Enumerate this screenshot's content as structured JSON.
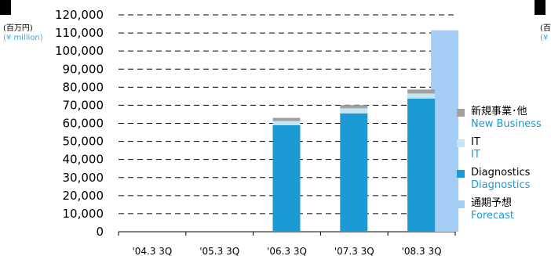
{
  "chart_data": {
    "type": "bar",
    "unit_label_ja": "(百万円)",
    "unit_label_en": "(¥ million)",
    "clipped_unit_label_ja": "(百",
    "clipped_unit_label_en": "(¥",
    "categories": [
      "'04.3 3Q",
      "'05.3 3Q",
      "'06.3 3Q",
      "'07.3 3Q",
      "'08.3 3Q"
    ],
    "ylim": [
      0,
      120000
    ],
    "yticks": [
      "0",
      "10,000",
      "20,000",
      "30,000",
      "40,000",
      "50,000",
      "60,000",
      "70,000",
      "80,000",
      "90,000",
      "100,000",
      "110,000",
      "120,000"
    ],
    "grid": true,
    "stacked": true,
    "series": [
      {
        "key": "diagnostics",
        "color": "#1c9ad6",
        "values": [
          0,
          0,
          59000,
          65500,
          73700
        ]
      },
      {
        "key": "it",
        "color": "#c5e4f6",
        "values": [
          0,
          0,
          2300,
          2800,
          2800
        ]
      },
      {
        "key": "new_business",
        "color": "#a0a0a0",
        "values": [
          0,
          0,
          1700,
          1800,
          2200
        ]
      }
    ],
    "forecast": {
      "key": "forecast",
      "color": "#a3cdf4",
      "category_index": 4,
      "value": 111500
    },
    "legend": {
      "placement": "right",
      "items": [
        {
          "label": "新規事業･他",
          "label_en": "New Business",
          "color": "#a0a0a0"
        },
        {
          "label": "IT",
          "label_en": "IT",
          "color": "#c5e4f6"
        },
        {
          "label": "Diagnostics",
          "label_en": "Diagnostics",
          "color": "#1c9ad6"
        },
        {
          "label": "通期予想",
          "label_en": "Forecast",
          "color": "#a3cdf4"
        }
      ]
    }
  }
}
